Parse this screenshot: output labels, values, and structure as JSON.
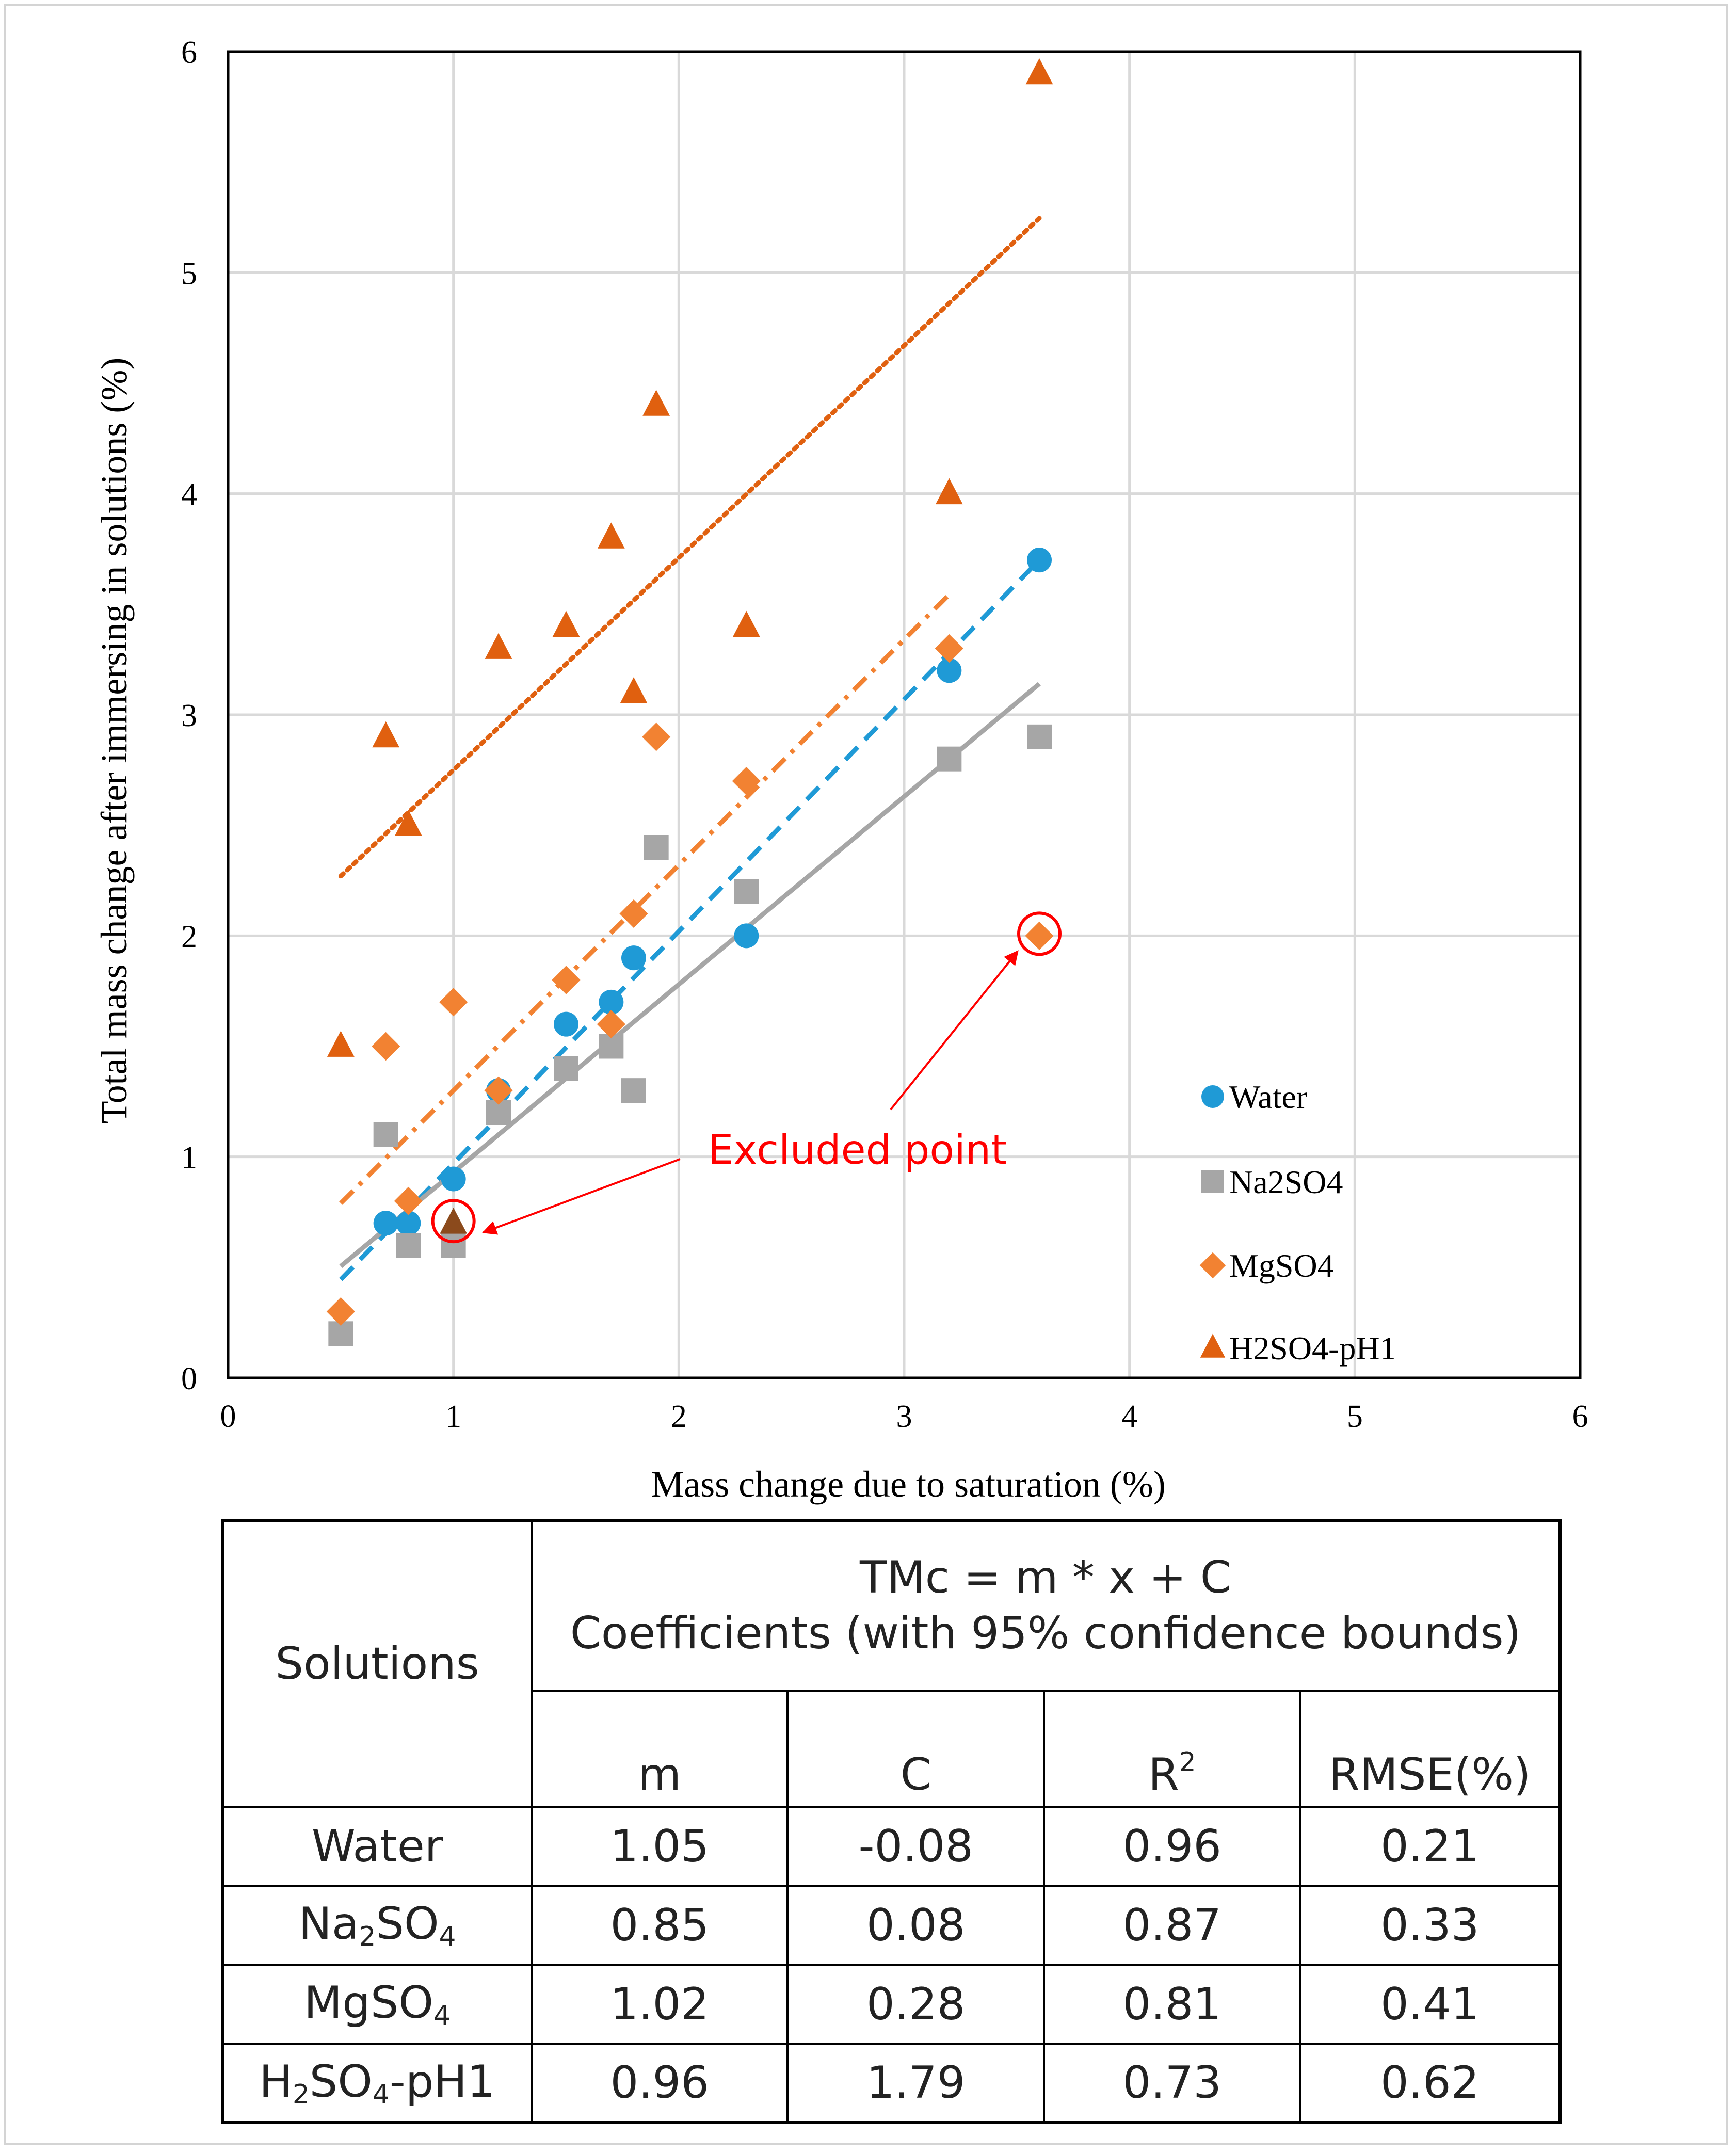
{
  "chart_data": {
    "type": "scatter",
    "title": "",
    "xlabel": "Mass change due to saturation (%)",
    "ylabel": "Total mass change after immersing in solutions (%)",
    "xlim": [
      0,
      6
    ],
    "ylim": [
      0,
      6
    ],
    "xticks": [
      "0",
      "1",
      "2",
      "3",
      "4",
      "5",
      "6"
    ],
    "yticks": [
      "0",
      "1",
      "2",
      "3",
      "4",
      "5",
      "6"
    ],
    "grid": true,
    "legend_position": "right",
    "series": [
      {
        "name": "Water",
        "marker": "circle",
        "color": "#1f9ad6",
        "trend_style": "dashed",
        "points": [
          [
            0.7,
            0.7
          ],
          [
            0.8,
            0.7
          ],
          [
            1.0,
            0.9
          ],
          [
            1.2,
            1.3
          ],
          [
            1.5,
            1.6
          ],
          [
            1.7,
            1.7
          ],
          [
            1.8,
            1.9
          ],
          [
            2.3,
            2.0
          ],
          [
            3.2,
            3.2
          ],
          [
            3.6,
            3.7
          ]
        ],
        "trend": [
          [
            0.5,
            0.445
          ],
          [
            3.6,
            3.7
          ]
        ]
      },
      {
        "name": "Na2SO4",
        "marker": "square",
        "color": "#a6a6a6",
        "trend_style": "solid",
        "points": [
          [
            0.5,
            0.2
          ],
          [
            0.7,
            1.1
          ],
          [
            0.8,
            0.6
          ],
          [
            1.0,
            0.6
          ],
          [
            1.2,
            1.2
          ],
          [
            1.5,
            1.4
          ],
          [
            1.7,
            1.5
          ],
          [
            1.8,
            1.3
          ],
          [
            1.9,
            2.4
          ],
          [
            2.3,
            2.2
          ],
          [
            3.2,
            2.8
          ],
          [
            3.6,
            2.9
          ]
        ],
        "trend": [
          [
            0.5,
            0.505
          ],
          [
            3.6,
            3.14
          ]
        ]
      },
      {
        "name": "MgSO4",
        "marker": "diamond",
        "color": "#f28232",
        "trend_style": "dashdot",
        "points": [
          [
            0.5,
            0.3
          ],
          [
            0.7,
            1.5
          ],
          [
            0.8,
            0.8
          ],
          [
            1.0,
            1.7
          ],
          [
            1.2,
            1.3
          ],
          [
            1.5,
            1.8
          ],
          [
            1.7,
            1.6
          ],
          [
            1.8,
            2.1
          ],
          [
            1.9,
            2.9
          ],
          [
            2.3,
            2.7
          ],
          [
            3.2,
            3.3
          ],
          [
            3.6,
            2.0
          ]
        ],
        "trend": [
          [
            0.5,
            0.79
          ],
          [
            3.2,
            3.544
          ]
        ]
      },
      {
        "name": "H2SO4-pH1",
        "marker": "triangle",
        "color": "#e0600f",
        "trend_style": "dotted",
        "points": [
          [
            0.5,
            1.5
          ],
          [
            0.7,
            2.9
          ],
          [
            0.8,
            2.5
          ],
          [
            1.0,
            0.7
          ],
          [
            1.2,
            3.3
          ],
          [
            1.5,
            3.4
          ],
          [
            1.7,
            3.8
          ],
          [
            1.8,
            3.1
          ],
          [
            1.9,
            4.4
          ],
          [
            2.3,
            3.4
          ],
          [
            3.2,
            4.0
          ],
          [
            3.6,
            5.9
          ]
        ],
        "trend": [
          [
            0.5,
            2.27
          ],
          [
            3.6,
            5.246
          ]
        ]
      }
    ],
    "excluded_points": [
      [
        1.0,
        0.7
      ],
      [
        3.6,
        2.0
      ]
    ],
    "annotation": "Excluded point",
    "annotation_color": "#ff0000"
  },
  "table": {
    "header_solutions": "Solutions",
    "header_equation": "TMc = m * x + C",
    "header_coefficients": "Coefficients (with 95% confidence bounds)",
    "col_m": "m",
    "col_c": "C",
    "col_r": "R",
    "col_r_sup": "2",
    "col_rmse": "RMSE(%)",
    "rows": [
      {
        "name": "Water",
        "m": "1.05",
        "c": "-0.08",
        "r2": "0.96",
        "rmse": "0.21"
      },
      {
        "name_parts": [
          "Na",
          "2",
          "SO",
          "4"
        ],
        "m": "0.85",
        "c": "0.08",
        "r2": "0.87",
        "rmse": "0.33"
      },
      {
        "name_parts": [
          "MgSO",
          "4"
        ],
        "m": "1.02",
        "c": "0.28",
        "r2": "0.81",
        "rmse": "0.41"
      },
      {
        "name_parts": [
          "H",
          "2",
          "SO",
          "4",
          "-pH1"
        ],
        "m": "0.96",
        "c": "1.79",
        "r2": "0.73",
        "rmse": "0.62"
      }
    ]
  }
}
